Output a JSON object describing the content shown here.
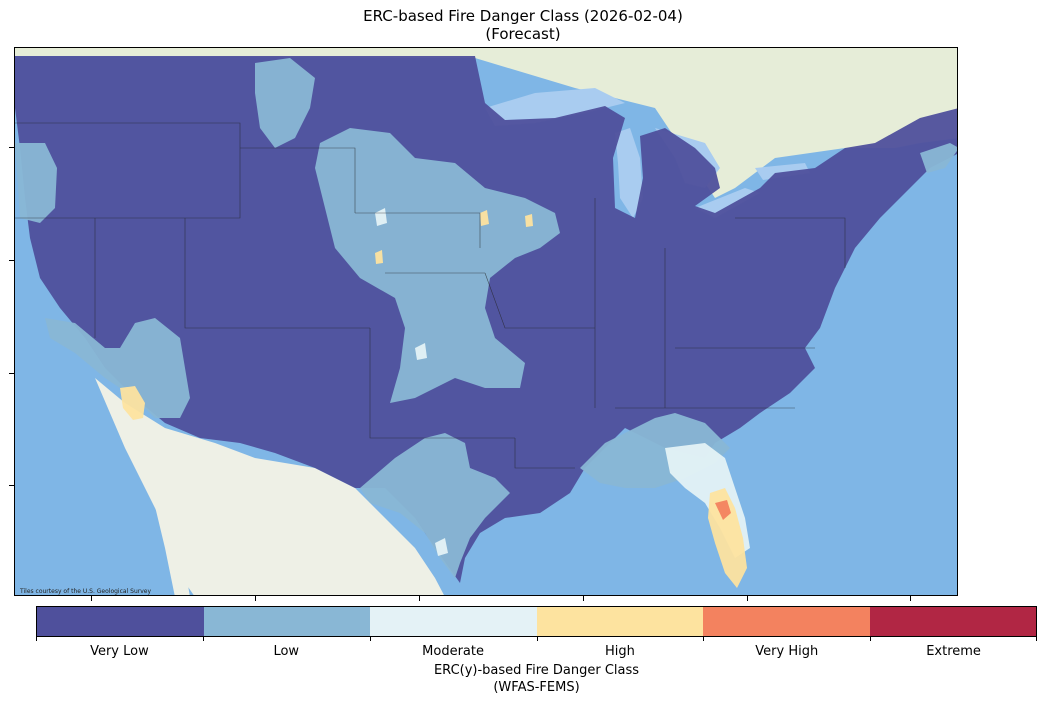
{
  "title": {
    "line1": "ERC-based Fire Danger Class (2026-02-04)",
    "line2": "(Forecast)"
  },
  "map": {
    "attribution": "Tiles courtesy of the U.S. Geological Survey",
    "background_colors": {
      "ocean": "#7fb6e6",
      "land": "#eef0e6",
      "canada": "#e6edd8",
      "lakes": "#a9ccf0"
    }
  },
  "legend": {
    "classes": [
      {
        "label": "Very Low",
        "color": "#4f509c"
      },
      {
        "label": "Low",
        "color": "#89b7d5"
      },
      {
        "label": "Moderate",
        "color": "#e4f2f6"
      },
      {
        "label": "High",
        "color": "#fde39f"
      },
      {
        "label": "Very High",
        "color": "#f3825f"
      },
      {
        "label": "Extreme",
        "color": "#b12644"
      }
    ],
    "title_line1": "ERC(y)-based Fire Danger Class",
    "title_line2": "(WFAS-FEMS)"
  }
}
